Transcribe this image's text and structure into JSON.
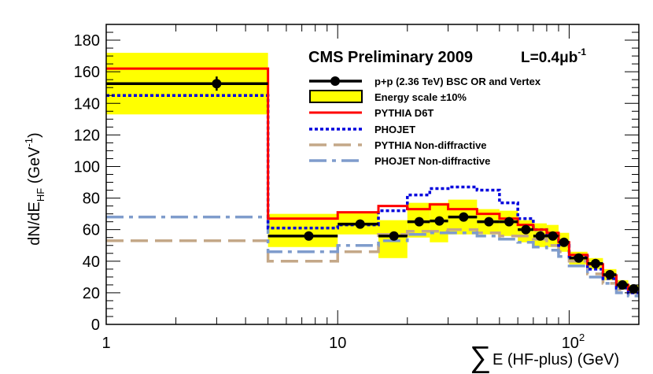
{
  "chart_data": {
    "type": "histogram",
    "title": "CMS Preliminary 2009",
    "luminosity": {
      "prefix": "L=0.4",
      "unit": "μb",
      "exponent": "-1"
    },
    "xlabel": {
      "sum": "∑",
      "text": "E (HF-plus) (GeV)"
    },
    "ylabel": {
      "main": "dN/dE",
      "sub": "HF",
      "unit_open": " (GeV",
      "unit_exp": "-1",
      "unit_close": ")"
    },
    "xscale": "log",
    "xlim": [
      1,
      200
    ],
    "ylim": [
      0,
      190
    ],
    "xticks": [
      {
        "value": 1,
        "label": "1"
      },
      {
        "value": 10,
        "label": "10"
      },
      {
        "value": 100,
        "label": "10",
        "exp": "2"
      }
    ],
    "yticks": [
      0,
      20,
      40,
      60,
      80,
      100,
      120,
      140,
      160,
      180
    ],
    "bin_edges": [
      1,
      5,
      10,
      15,
      20,
      25,
      30,
      40,
      50,
      60,
      70,
      80,
      90,
      100,
      120,
      140,
      160,
      180,
      200
    ],
    "data": {
      "name": "p+p (2.36 TeV) BSC OR and Vertex",
      "x": [
        3,
        7.5,
        12.5,
        17.5,
        22.5,
        27.5,
        35,
        45,
        55,
        65,
        75,
        85,
        95,
        110,
        130,
        150,
        170,
        190
      ],
      "values": [
        152.5,
        56,
        63.5,
        56,
        65,
        65.5,
        68,
        65,
        65,
        60,
        56,
        56,
        52,
        42,
        38.5,
        31.5,
        25,
        22.5
      ],
      "errors": [
        4.5,
        2.5,
        2.5,
        2.5,
        2.5,
        2.5,
        2,
        2,
        2,
        2,
        2,
        2,
        2,
        1.5,
        1.5,
        1.5,
        1.5,
        1.5
      ]
    },
    "band": {
      "name": "Energy scale ±10%",
      "low": [
        133,
        49,
        57,
        42,
        55,
        52,
        57,
        57,
        56,
        52,
        49,
        49,
        46,
        38,
        35,
        28,
        22,
        20
      ],
      "high": [
        172,
        70,
        71,
        66,
        77,
        77,
        79,
        73,
        72,
        66,
        64,
        63,
        58,
        46,
        42,
        35,
        28,
        25
      ]
    },
    "series": [
      {
        "name": "PYTHIA D6T",
        "color": "#ff0000",
        "style": "solid",
        "values": [
          162,
          67,
          71,
          75,
          73,
          76,
          73,
          70,
          67,
          63,
          60,
          58,
          52,
          44,
          38,
          31,
          25,
          22
        ]
      },
      {
        "name": "PHOJET",
        "color": "#0000dd",
        "style": "dotted",
        "values": [
          145,
          61,
          63,
          72,
          82,
          86,
          87,
          85,
          77,
          67,
          60,
          56,
          50,
          43,
          35,
          29,
          23,
          20
        ]
      },
      {
        "name": "PYTHIA Non-diffractive",
        "color": "#c4a888",
        "style": "dashed",
        "values": [
          53,
          40,
          46,
          57,
          59,
          59,
          60,
          58,
          56,
          56,
          54,
          50,
          46,
          40,
          32,
          26,
          22,
          20
        ]
      },
      {
        "name": "PHOJET Non-diffractive",
        "color": "#7f9ccc",
        "style": "dashdot",
        "values": [
          68,
          46,
          50,
          53,
          57,
          58,
          58,
          56,
          54,
          52,
          49,
          47,
          43,
          37,
          30,
          26,
          20,
          18
        ]
      }
    ],
    "legend_position": "top-right",
    "grid": false
  }
}
